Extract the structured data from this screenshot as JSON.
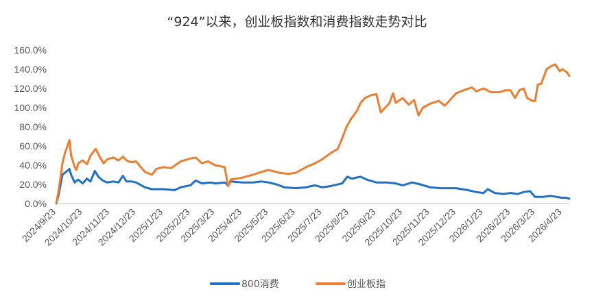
{
  "chart_data": {
    "type": "line",
    "title": "“924”以来，创业板指数和消费指数走势对比",
    "ylim": [
      0,
      160
    ],
    "y_ticks": [
      "0.0%",
      "20.0%",
      "40.0%",
      "60.0%",
      "80.0%",
      "100.0%",
      "120.0%",
      "140.0%",
      "160.0%"
    ],
    "x_ticks": [
      "2024/9/23",
      "2024/10/23",
      "2024/11/23",
      "2024/12/23",
      "2025/1/23",
      "2025/2/23",
      "2025/3/23",
      "2025/4/23",
      "2025/5/23",
      "2025/6/23",
      "2025/7/23",
      "2025/8/23",
      "2025/9/23",
      "2025/10/23",
      "2025/11/23",
      "2025/12/23",
      "2026/1/23",
      "2026/2/23",
      "2026/3/23",
      "2026/4/23"
    ],
    "x_range": [
      "2024/9/23",
      "2026/5/1"
    ],
    "grid": false,
    "legend_position": "bottom",
    "series": [
      {
        "name": "800消费",
        "color": "#1f6fc6",
        "points": [
          [
            "2024/9/23",
            0
          ],
          [
            "2024/9/26",
            10
          ],
          [
            "2024/9/30",
            30
          ],
          [
            "2024/10/8",
            36
          ],
          [
            "2024/10/10",
            30
          ],
          [
            "2024/10/14",
            22
          ],
          [
            "2024/10/18",
            25
          ],
          [
            "2024/10/23",
            21
          ],
          [
            "2024/10/28",
            26
          ],
          [
            "2024/11/1",
            23
          ],
          [
            "2024/11/6",
            34
          ],
          [
            "2024/11/10",
            28
          ],
          [
            "2024/11/15",
            24
          ],
          [
            "2024/11/20",
            22
          ],
          [
            "2024/11/27",
            23
          ],
          [
            "2024/12/3",
            22
          ],
          [
            "2024/12/8",
            29
          ],
          [
            "2024/12/12",
            23
          ],
          [
            "2024/12/18",
            23
          ],
          [
            "2024/12/23",
            22
          ],
          [
            "2025/1/2",
            17
          ],
          [
            "2025/1/10",
            15
          ],
          [
            "2025/1/23",
            15
          ],
          [
            "2025/2/5",
            14
          ],
          [
            "2025/2/12",
            17
          ],
          [
            "2025/2/23",
            19
          ],
          [
            "2025/3/1",
            24
          ],
          [
            "2025/3/8",
            21
          ],
          [
            "2025/3/18",
            22
          ],
          [
            "2025/3/23",
            21
          ],
          [
            "2025/4/3",
            22
          ],
          [
            "2025/4/7",
            19
          ],
          [
            "2025/4/10",
            23
          ],
          [
            "2025/4/23",
            22
          ],
          [
            "2025/5/5",
            22
          ],
          [
            "2025/5/15",
            23
          ],
          [
            "2025/5/23",
            22
          ],
          [
            "2025/6/1",
            20
          ],
          [
            "2025/6/10",
            17
          ],
          [
            "2025/6/23",
            16
          ],
          [
            "2025/7/5",
            17
          ],
          [
            "2025/7/15",
            19
          ],
          [
            "2025/7/23",
            17
          ],
          [
            "2025/8/1",
            18
          ],
          [
            "2025/8/15",
            21
          ],
          [
            "2025/8/21",
            28
          ],
          [
            "2025/8/26",
            26
          ],
          [
            "2025/9/5",
            28
          ],
          [
            "2025/9/12",
            25
          ],
          [
            "2025/9/23",
            22
          ],
          [
            "2025/10/5",
            22
          ],
          [
            "2025/10/15",
            21
          ],
          [
            "2025/10/23",
            19
          ],
          [
            "2025/11/3",
            22
          ],
          [
            "2025/11/12",
            20
          ],
          [
            "2025/11/23",
            17
          ],
          [
            "2025/12/5",
            16
          ],
          [
            "2025/12/15",
            16
          ],
          [
            "2025/12/23",
            16
          ],
          [
            "2026/1/5",
            14
          ],
          [
            "2026/1/15",
            12
          ],
          [
            "2026/1/23",
            11
          ],
          [
            "2026/1/28",
            15
          ],
          [
            "2026/2/5",
            11
          ],
          [
            "2026/2/15",
            10
          ],
          [
            "2026/2/23",
            11
          ],
          [
            "2026/3/3",
            10
          ],
          [
            "2026/3/10",
            12
          ],
          [
            "2026/3/17",
            13
          ],
          [
            "2026/3/23",
            7
          ],
          [
            "2026/4/1",
            7
          ],
          [
            "2026/4/10",
            8
          ],
          [
            "2026/4/23",
            6
          ],
          [
            "2026/4/28",
            6
          ],
          [
            "2026/5/1",
            5
          ]
        ]
      },
      {
        "name": "创业板指",
        "color": "#ed7d31",
        "points": [
          [
            "2024/9/23",
            0
          ],
          [
            "2024/9/26",
            15
          ],
          [
            "2024/9/30",
            42
          ],
          [
            "2024/10/3",
            53
          ],
          [
            "2024/10/8",
            66
          ],
          [
            "2024/10/10",
            50
          ],
          [
            "2024/10/14",
            38
          ],
          [
            "2024/10/16",
            35
          ],
          [
            "2024/10/18",
            42
          ],
          [
            "2024/10/23",
            45
          ],
          [
            "2024/10/28",
            41
          ],
          [
            "2024/11/1",
            50
          ],
          [
            "2024/11/7",
            57
          ],
          [
            "2024/11/12",
            48
          ],
          [
            "2024/11/16",
            42
          ],
          [
            "2024/11/20",
            46
          ],
          [
            "2024/11/27",
            48
          ],
          [
            "2024/12/3",
            45
          ],
          [
            "2024/12/8",
            49
          ],
          [
            "2024/12/12",
            45
          ],
          [
            "2024/12/18",
            43
          ],
          [
            "2024/12/23",
            44
          ],
          [
            "2025/1/2",
            33
          ],
          [
            "2025/1/10",
            30
          ],
          [
            "2025/1/15",
            36
          ],
          [
            "2025/1/23",
            38
          ],
          [
            "2025/2/1",
            37
          ],
          [
            "2025/2/12",
            44
          ],
          [
            "2025/2/23",
            47
          ],
          [
            "2025/3/1",
            48
          ],
          [
            "2025/3/8",
            42
          ],
          [
            "2025/3/15",
            44
          ],
          [
            "2025/3/23",
            40
          ],
          [
            "2025/4/3",
            38
          ],
          [
            "2025/4/7",
            18
          ],
          [
            "2025/4/10",
            25
          ],
          [
            "2025/4/23",
            27
          ],
          [
            "2025/5/5",
            30
          ],
          [
            "2025/5/15",
            33
          ],
          [
            "2025/5/23",
            35
          ],
          [
            "2025/6/5",
            32
          ],
          [
            "2025/6/15",
            31
          ],
          [
            "2025/6/23",
            32
          ],
          [
            "2025/7/5",
            38
          ],
          [
            "2025/7/15",
            42
          ],
          [
            "2025/7/23",
            46
          ],
          [
            "2025/8/1",
            52
          ],
          [
            "2025/8/10",
            57
          ],
          [
            "2025/8/15",
            68
          ],
          [
            "2025/8/20",
            80
          ],
          [
            "2025/8/25",
            88
          ],
          [
            "2025/9/1",
            97
          ],
          [
            "2025/9/5",
            105
          ],
          [
            "2025/9/10",
            110
          ],
          [
            "2025/9/17",
            113
          ],
          [
            "2025/9/23",
            114
          ],
          [
            "2025/9/28",
            95
          ],
          [
            "2025/10/8",
            105
          ],
          [
            "2025/10/12",
            115
          ],
          [
            "2025/10/15",
            105
          ],
          [
            "2025/10/23",
            110
          ],
          [
            "2025/10/30",
            103
          ],
          [
            "2025/11/5",
            108
          ],
          [
            "2025/11/10",
            92
          ],
          [
            "2025/11/15",
            100
          ],
          [
            "2025/11/23",
            104
          ],
          [
            "2025/12/3",
            107
          ],
          [
            "2025/12/10",
            102
          ],
          [
            "2025/12/18",
            110
          ],
          [
            "2025/12/23",
            115
          ],
          [
            "2026/1/3",
            119
          ],
          [
            "2026/1/10",
            121
          ],
          [
            "2026/1/15",
            117
          ],
          [
            "2026/1/23",
            120
          ],
          [
            "2026/2/1",
            116
          ],
          [
            "2026/2/10",
            116
          ],
          [
            "2026/2/17",
            118
          ],
          [
            "2026/2/23",
            118
          ],
          [
            "2026/2/28",
            110
          ],
          [
            "2026/3/5",
            118
          ],
          [
            "2026/3/10",
            120
          ],
          [
            "2026/3/14",
            110
          ],
          [
            "2026/3/20",
            107
          ],
          [
            "2026/3/23",
            107
          ],
          [
            "2026/3/26",
            124
          ],
          [
            "2026/3/30",
            125
          ],
          [
            "2026/4/5",
            140
          ],
          [
            "2026/4/10",
            143
          ],
          [
            "2026/4/15",
            145
          ],
          [
            "2026/4/20",
            138
          ],
          [
            "2026/4/23",
            140
          ],
          [
            "2026/4/28",
            137
          ],
          [
            "2026/5/1",
            133
          ]
        ]
      }
    ]
  }
}
